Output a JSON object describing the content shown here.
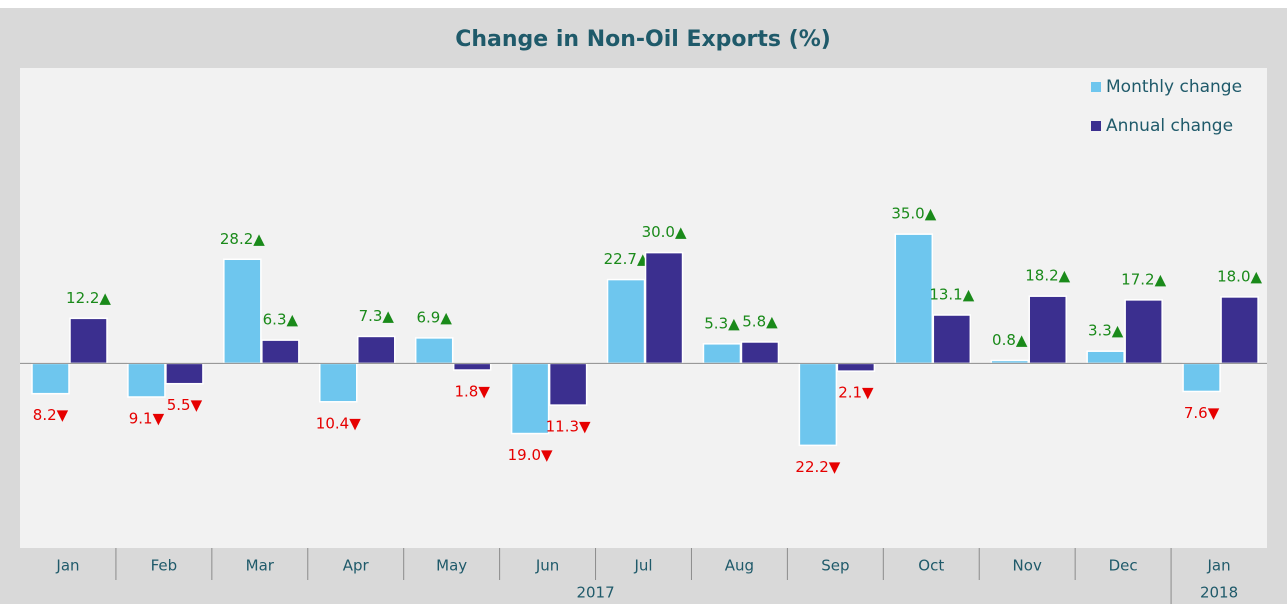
{
  "chart_data": {
    "type": "bar",
    "title": "Change in Non-Oil Exports (%)",
    "categories": [
      "Jan",
      "Feb",
      "Mar",
      "Apr",
      "May",
      "Jun",
      "Jul",
      "Aug",
      "Sep",
      "Oct",
      "Nov",
      "Dec",
      "Jan"
    ],
    "year_labels": [
      "2017",
      null,
      null,
      null,
      null,
      null,
      null,
      null,
      null,
      null,
      null,
      null,
      "2018"
    ],
    "series": [
      {
        "name": "Monthly change",
        "color": "#6ec6ee",
        "values": [
          -8.2,
          -9.1,
          28.2,
          -10.4,
          6.9,
          -19.0,
          22.7,
          5.3,
          -22.2,
          35.0,
          0.8,
          3.3,
          -7.6
        ],
        "value_labels": [
          "8.2▼",
          "9.1▼",
          "28.2▲",
          "10.4▼",
          "6.9▲",
          "19.0▼",
          "22.7▲",
          "5.3▲",
          "22.2▼",
          "35.0▲",
          "0.8▲",
          "3.3▲",
          "7.6▼"
        ]
      },
      {
        "name": "Annual change",
        "color": "#3b2f8f",
        "values": [
          12.2,
          -5.5,
          6.3,
          7.3,
          -1.8,
          -11.3,
          30.0,
          5.8,
          -2.1,
          13.1,
          18.2,
          17.2,
          18.0
        ],
        "value_labels": [
          "12.2▲",
          "5.5▼",
          "6.3▲",
          "7.3▲",
          "1.8▼",
          "11.3▼",
          "30.0▲",
          "5.8▲",
          "2.1▼",
          "13.1▲",
          "18.2▲",
          "17.2▲",
          "18.0▲"
        ]
      }
    ],
    "positive_label_color": "#1a8a1a",
    "negative_label_color": "#e60000",
    "ylim": [
      -50,
      80
    ],
    "legend": "top-right"
  }
}
